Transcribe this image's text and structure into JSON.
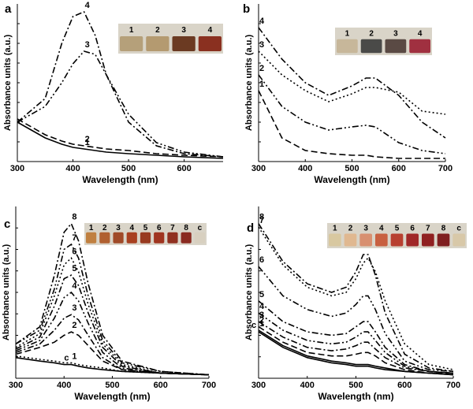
{
  "chart_data": [
    {
      "type": "line",
      "panel_label": "a",
      "x_label": "Wavelength (nm)",
      "y_label": "Absorbance units (a.u.)",
      "xlim": [
        300,
        670
      ],
      "xticks": [
        300,
        400,
        500,
        600
      ],
      "ylim": [
        0,
        1
      ],
      "x": [
        300,
        350,
        380,
        400,
        420,
        440,
        460,
        500,
        550,
        600,
        670
      ],
      "series": [
        {
          "name": "4",
          "color": "#000000",
          "dash": "dashdot",
          "values": [
            0.25,
            0.4,
            0.75,
            0.92,
            0.95,
            0.8,
            0.55,
            0.25,
            0.1,
            0.05,
            0.03
          ]
        },
        {
          "name": "3",
          "color": "#000000",
          "dash": "dashdotdot",
          "values": [
            0.25,
            0.35,
            0.5,
            0.62,
            0.7,
            0.68,
            0.55,
            0.3,
            0.12,
            0.06,
            0.03
          ]
        },
        {
          "name": "2",
          "color": "#000000",
          "dash": "dash",
          "values": [
            0.27,
            0.17,
            0.13,
            0.11,
            0.1,
            0.09,
            0.08,
            0.07,
            0.05,
            0.04,
            0.03
          ]
        },
        {
          "name": "1",
          "color": "#000000",
          "dash": "solid",
          "values": [
            0.25,
            0.15,
            0.11,
            0.09,
            0.08,
            0.07,
            0.06,
            0.05,
            0.04,
            0.03,
            0.02
          ]
        }
      ],
      "inset_labels": [
        "1",
        "2",
        "3",
        "4"
      ],
      "inset_colors": [
        "#b5a07a",
        "#b49a70",
        "#6b3a22",
        "#8a3020"
      ]
    },
    {
      "type": "line",
      "panel_label": "b",
      "x_label": "Wavelength (nm)",
      "y_label": "Absorbance units (a.u.)",
      "xlim": [
        300,
        700
      ],
      "xticks": [
        300,
        400,
        500,
        600,
        700
      ],
      "ylim": [
        0,
        1
      ],
      "x": [
        300,
        350,
        400,
        450,
        500,
        530,
        550,
        600,
        650,
        700
      ],
      "series": [
        {
          "name": "4",
          "color": "#000000",
          "dash": "dashdot",
          "values": [
            0.85,
            0.65,
            0.5,
            0.42,
            0.48,
            0.53,
            0.53,
            0.42,
            0.25,
            0.15
          ]
        },
        {
          "name": "3",
          "color": "#000000",
          "dash": "dot",
          "values": [
            0.7,
            0.55,
            0.45,
            0.38,
            0.43,
            0.47,
            0.47,
            0.44,
            0.32,
            0.3
          ]
        },
        {
          "name": "2",
          "color": "#000000",
          "dash": "dashdotdot",
          "values": [
            0.55,
            0.35,
            0.25,
            0.2,
            0.22,
            0.23,
            0.22,
            0.12,
            0.07,
            0.05
          ]
        },
        {
          "name": "1",
          "color": "#000000",
          "dash": "dash",
          "values": [
            0.45,
            0.15,
            0.07,
            0.05,
            0.04,
            0.04,
            0.03,
            0.02,
            0.02,
            0.02
          ]
        }
      ],
      "inset_labels": [
        "1",
        "2",
        "3",
        "4"
      ],
      "inset_colors": [
        "#c7b79a",
        "#4a4a48",
        "#5a4a44",
        "#a03040"
      ]
    },
    {
      "type": "line",
      "panel_label": "c",
      "x_label": "Wavelength (nm)",
      "y_label": "Absorbance units (a.u.)",
      "xlim": [
        300,
        700
      ],
      "xticks": [
        300,
        400,
        500,
        600,
        700
      ],
      "ylim": [
        0,
        1
      ],
      "x": [
        300,
        350,
        380,
        400,
        415,
        430,
        450,
        480,
        520,
        600,
        700
      ],
      "series": [
        {
          "name": "8",
          "color": "#000000",
          "dash": "dashdot",
          "values": [
            0.2,
            0.3,
            0.6,
            0.85,
            0.9,
            0.8,
            0.55,
            0.25,
            0.1,
            0.04,
            0.02
          ]
        },
        {
          "name": "7",
          "color": "#000000",
          "dash": "dashdotdot",
          "values": [
            0.2,
            0.28,
            0.52,
            0.75,
            0.78,
            0.7,
            0.48,
            0.22,
            0.09,
            0.04,
            0.02
          ]
        },
        {
          "name": "6",
          "color": "#000000",
          "dash": "dot",
          "values": [
            0.18,
            0.26,
            0.48,
            0.66,
            0.7,
            0.62,
            0.43,
            0.2,
            0.08,
            0.03,
            0.02
          ]
        },
        {
          "name": "5",
          "color": "#000000",
          "dash": "dashdot",
          "values": [
            0.17,
            0.24,
            0.42,
            0.58,
            0.6,
            0.54,
            0.38,
            0.18,
            0.07,
            0.03,
            0.02
          ]
        },
        {
          "name": "4",
          "color": "#000000",
          "dash": "dashdotdot",
          "values": [
            0.16,
            0.22,
            0.35,
            0.47,
            0.5,
            0.45,
            0.32,
            0.15,
            0.06,
            0.03,
            0.02
          ]
        },
        {
          "name": "3",
          "color": "#000000",
          "dash": "dashdot",
          "values": [
            0.15,
            0.2,
            0.28,
            0.35,
            0.37,
            0.34,
            0.25,
            0.12,
            0.05,
            0.03,
            0.02
          ]
        },
        {
          "name": "2",
          "color": "#000000",
          "dash": "dash",
          "values": [
            0.14,
            0.18,
            0.21,
            0.25,
            0.27,
            0.25,
            0.19,
            0.1,
            0.05,
            0.03,
            0.02
          ]
        },
        {
          "name": "1",
          "color": "#000000",
          "dash": "dot",
          "values": [
            0.13,
            0.11,
            0.1,
            0.09,
            0.09,
            0.08,
            0.07,
            0.06,
            0.04,
            0.03,
            0.02
          ]
        },
        {
          "name": "c",
          "color": "#000000",
          "dash": "solid",
          "values": [
            0.12,
            0.1,
            0.09,
            0.08,
            0.08,
            0.07,
            0.06,
            0.05,
            0.04,
            0.03,
            0.02
          ]
        }
      ],
      "inset_labels": [
        "1",
        "2",
        "3",
        "4",
        "5",
        "6",
        "7",
        "8",
        "c"
      ],
      "inset_colors": [
        "#c08040",
        "#b06030",
        "#a04a28",
        "#a84020",
        "#983a20",
        "#a03520",
        "#903020",
        "#8a2a20",
        "#d8d0c0"
      ]
    },
    {
      "type": "line",
      "panel_label": "d",
      "x_label": "Wavelength (nm)",
      "y_label": "Absorbance units (a.u.)",
      "xlim": [
        300,
        700
      ],
      "xticks": [
        300,
        400,
        500,
        600,
        700
      ],
      "ylim": [
        0,
        1
      ],
      "x": [
        300,
        350,
        400,
        450,
        480,
        500,
        515,
        525,
        540,
        560,
        600,
        650,
        700
      ],
      "series": [
        {
          "name": "8",
          "color": "#000000",
          "dash": "dashdot",
          "values": [
            0.9,
            0.68,
            0.55,
            0.5,
            0.53,
            0.62,
            0.72,
            0.72,
            0.6,
            0.38,
            0.14,
            0.06,
            0.04
          ]
        },
        {
          "name": "7",
          "color": "#000000",
          "dash": "dot",
          "values": [
            0.88,
            0.66,
            0.53,
            0.48,
            0.5,
            0.58,
            0.67,
            0.7,
            0.62,
            0.45,
            0.2,
            0.08,
            0.05
          ]
        },
        {
          "name": "6",
          "color": "#000000",
          "dash": "dashdotdot",
          "values": [
            0.65,
            0.48,
            0.4,
            0.36,
            0.38,
            0.43,
            0.48,
            0.48,
            0.4,
            0.26,
            0.1,
            0.05,
            0.04
          ]
        },
        {
          "name": "5",
          "color": "#000000",
          "dash": "dashdot",
          "values": [
            0.45,
            0.33,
            0.27,
            0.25,
            0.26,
            0.3,
            0.33,
            0.33,
            0.27,
            0.18,
            0.08,
            0.04,
            0.03
          ]
        },
        {
          "name": "4",
          "color": "#000000",
          "dash": "dashdotdot",
          "values": [
            0.38,
            0.28,
            0.22,
            0.2,
            0.21,
            0.24,
            0.27,
            0.27,
            0.22,
            0.15,
            0.07,
            0.04,
            0.03
          ]
        },
        {
          "name": "3",
          "color": "#000000",
          "dash": "dashdot",
          "values": [
            0.33,
            0.24,
            0.18,
            0.16,
            0.17,
            0.19,
            0.21,
            0.21,
            0.17,
            0.12,
            0.06,
            0.04,
            0.03
          ]
        },
        {
          "name": "2",
          "color": "#000000",
          "dash": "dash",
          "values": [
            0.3,
            0.21,
            0.15,
            0.13,
            0.13,
            0.14,
            0.15,
            0.15,
            0.13,
            0.09,
            0.05,
            0.03,
            0.03
          ]
        },
        {
          "name": "1",
          "color": "#000000",
          "dash": "solid",
          "values": [
            0.28,
            0.19,
            0.13,
            0.1,
            0.09,
            0.08,
            0.08,
            0.08,
            0.07,
            0.06,
            0.04,
            0.03,
            0.02
          ]
        },
        {
          "name": "c",
          "color": "#000000",
          "dash": "solid",
          "values": [
            0.27,
            0.18,
            0.12,
            0.09,
            0.08,
            0.07,
            0.07,
            0.07,
            0.06,
            0.05,
            0.04,
            0.03,
            0.02
          ]
        }
      ],
      "inset_labels": [
        "1",
        "2",
        "3",
        "4",
        "5",
        "6",
        "7",
        "8",
        "c"
      ],
      "inset_colors": [
        "#d8c8a0",
        "#e0b890",
        "#d89070",
        "#c86040",
        "#b84030",
        "#a02828",
        "#902020",
        "#802020",
        "#d8c8a8"
      ]
    }
  ]
}
